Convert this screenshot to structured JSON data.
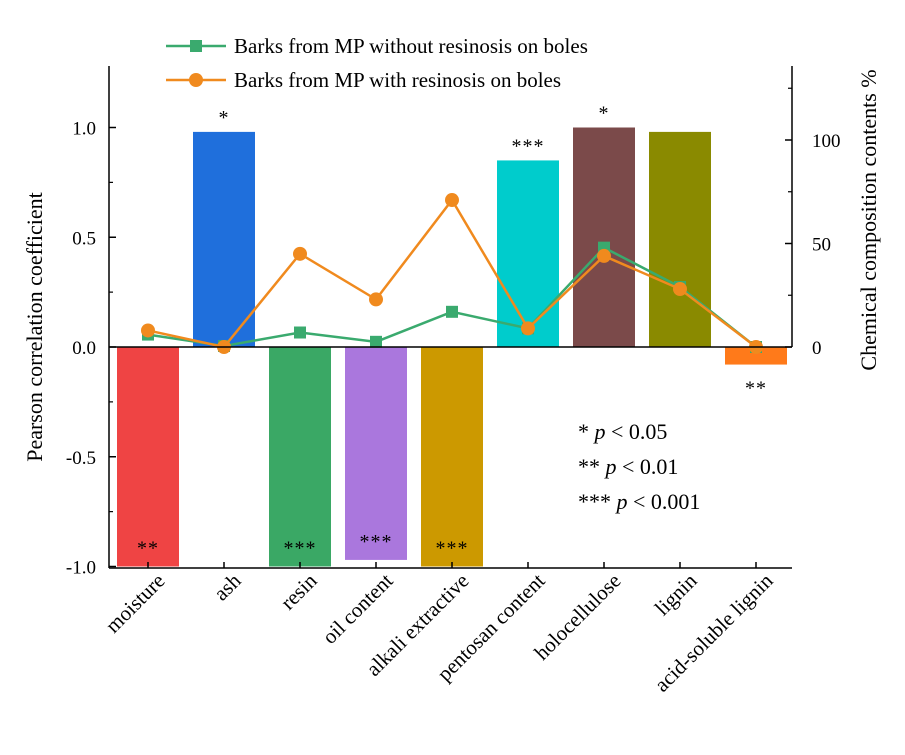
{
  "chart_data": {
    "type": "bar",
    "categories": [
      "moisture",
      "ash",
      "resin",
      "oil content",
      "alkali extractive",
      "pentosan content",
      "holocellulose",
      "lignin",
      "acid-soluble lignin"
    ],
    "bar_values": [
      -1.0,
      0.98,
      -1.0,
      -0.97,
      -1.0,
      0.85,
      1.0,
      0.98,
      -0.08
    ],
    "bar_colors": [
      "#ef4444",
      "#1f6fdc",
      "#3aa865",
      "#aa77dd",
      "#cc9900",
      "#00cccc",
      "#7b4a4a",
      "#8a8a00",
      "#ff7a1a"
    ],
    "significance": [
      "**",
      "*",
      "***",
      "***",
      "***",
      "***",
      "*",
      "",
      "**"
    ],
    "ylabel": "Pearson correlation coefficient",
    "ylim": [
      -1.0,
      1.25
    ],
    "yticks": [
      -1.0,
      -0.5,
      0.0,
      0.5,
      1.0
    ],
    "ytick_labels": [
      "-1.0",
      "-0.5",
      "0.0",
      "0.5",
      "1.0"
    ],
    "y2label": "Chemical composition contents %",
    "y2lim": [
      0,
      130
    ],
    "y2ticks": [
      0,
      50,
      100
    ],
    "y2tick_labels": [
      "0",
      "50",
      "100"
    ],
    "series": [
      {
        "name": "Barks from MP without resinosis on boles",
        "type": "line",
        "axis": "right",
        "marker": "square",
        "color": "#3aaa6e",
        "values": [
          6,
          0.5,
          7,
          2.5,
          17,
          9,
          48,
          29,
          0
        ]
      },
      {
        "name": "Barks from MP with resinosis on boles",
        "type": "line",
        "axis": "right",
        "marker": "circle",
        "color": "#f08a1e",
        "values": [
          8,
          0,
          45,
          23,
          71,
          9,
          44,
          28,
          0
        ]
      }
    ],
    "annotations": [
      "* p < 0.05",
      "** p < 0.01",
      "*** p < 0.001"
    ],
    "notes": {
      "items": [
        {
          "stars": "*",
          "text": "< 0.05"
        },
        {
          "stars": "**",
          "text": "< 0.01"
        },
        {
          "stars": "***",
          "text": "< 0.001"
        }
      ],
      "p": "p"
    },
    "legend_position": "top",
    "grid": false
  }
}
